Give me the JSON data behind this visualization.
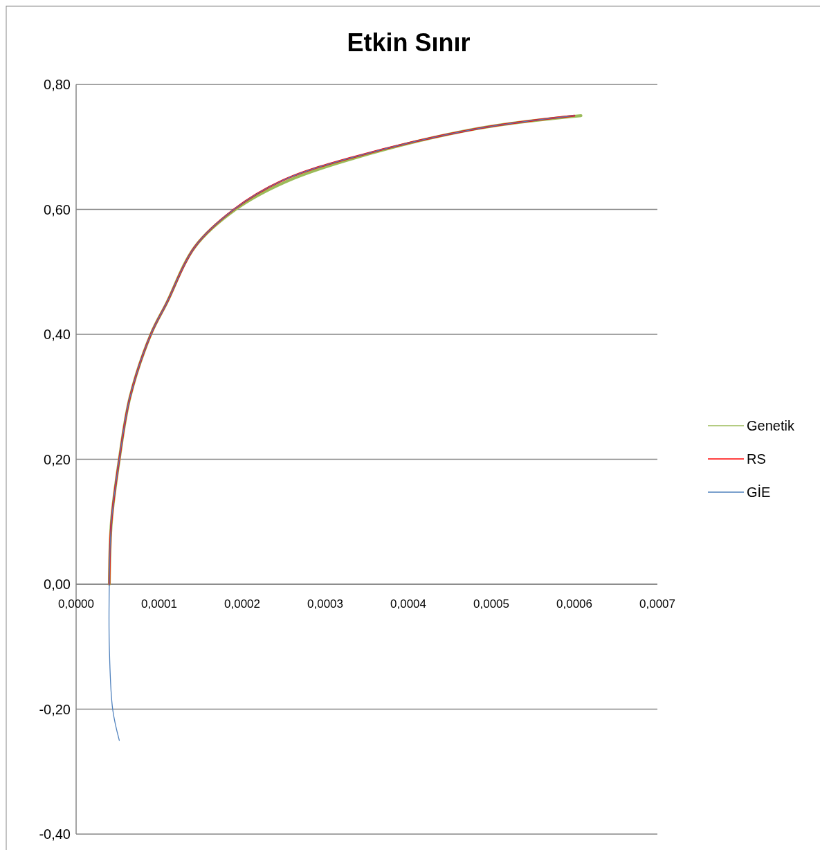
{
  "chart_data": {
    "type": "line",
    "title": "Etkin Sınır",
    "xlim": [
      0,
      0.0007
    ],
    "ylim": [
      -0.4,
      0.8
    ],
    "xticks": [
      {
        "value": 0,
        "label": "0,0000"
      },
      {
        "value": 0.0001,
        "label": "0,0001"
      },
      {
        "value": 0.0002,
        "label": "0,0002"
      },
      {
        "value": 0.0003,
        "label": "0,0003"
      },
      {
        "value": 0.0004,
        "label": "0,0004"
      },
      {
        "value": 0.0005,
        "label": "0,0005"
      },
      {
        "value": 0.0006,
        "label": "0,0006"
      },
      {
        "value": 0.0007,
        "label": "0,0007"
      }
    ],
    "yticks": [
      {
        "value": -0.4,
        "label": "-0,40"
      },
      {
        "value": -0.2,
        "label": "-0,20"
      },
      {
        "value": 0,
        "label": "0,00"
      },
      {
        "value": 0.2,
        "label": "0,20"
      },
      {
        "value": 0.4,
        "label": "0,40"
      },
      {
        "value": 0.6,
        "label": "0,60"
      },
      {
        "value": 0.8,
        "label": "0,80"
      }
    ],
    "grid": "y",
    "legend": "right",
    "marker": "none",
    "line_style": "solid",
    "series": [
      {
        "name": "Genetik",
        "color": "#9bbb59",
        "x": [
          4e-05,
          4.25e-05,
          5.2e-05,
          6.5e-05,
          9e-05,
          0.000109,
          0.000143,
          0.000192,
          0.000252,
          0.000335,
          0.000482,
          0.000608
        ],
        "values": [
          0,
          0.1,
          0.2,
          0.3,
          0.4,
          0.45,
          0.54,
          0.6,
          0.644,
          0.682,
          0.729,
          0.75
        ]
      },
      {
        "name": "RS",
        "color": "#ff0000",
        "x": [
          4e-05,
          4.25e-05,
          5.2e-05,
          6.5e-05,
          9e-05,
          0.000109,
          0.000143,
          0.00019,
          0.000248,
          0.000332,
          0.000482,
          0.0006
        ],
        "values": [
          0,
          0.1,
          0.2,
          0.3,
          0.4,
          0.45,
          0.54,
          0.6,
          0.646,
          0.683,
          0.729,
          0.75
        ]
      },
      {
        "name": "GİE",
        "color": "#4f81bd",
        "x": [
          5.2e-05,
          4.4e-05,
          4e-05,
          4e-05,
          4.25e-05,
          5.2e-05,
          6.5e-05,
          9e-05,
          0.000109,
          0.000143,
          0.00019,
          0.000248,
          0.000332,
          0.000482,
          0.0006
        ],
        "values": [
          -0.25,
          -0.2,
          -0.1,
          0,
          0.1,
          0.2,
          0.3,
          0.4,
          0.45,
          0.54,
          0.6,
          0.646,
          0.683,
          0.729,
          0.75
        ]
      }
    ]
  }
}
